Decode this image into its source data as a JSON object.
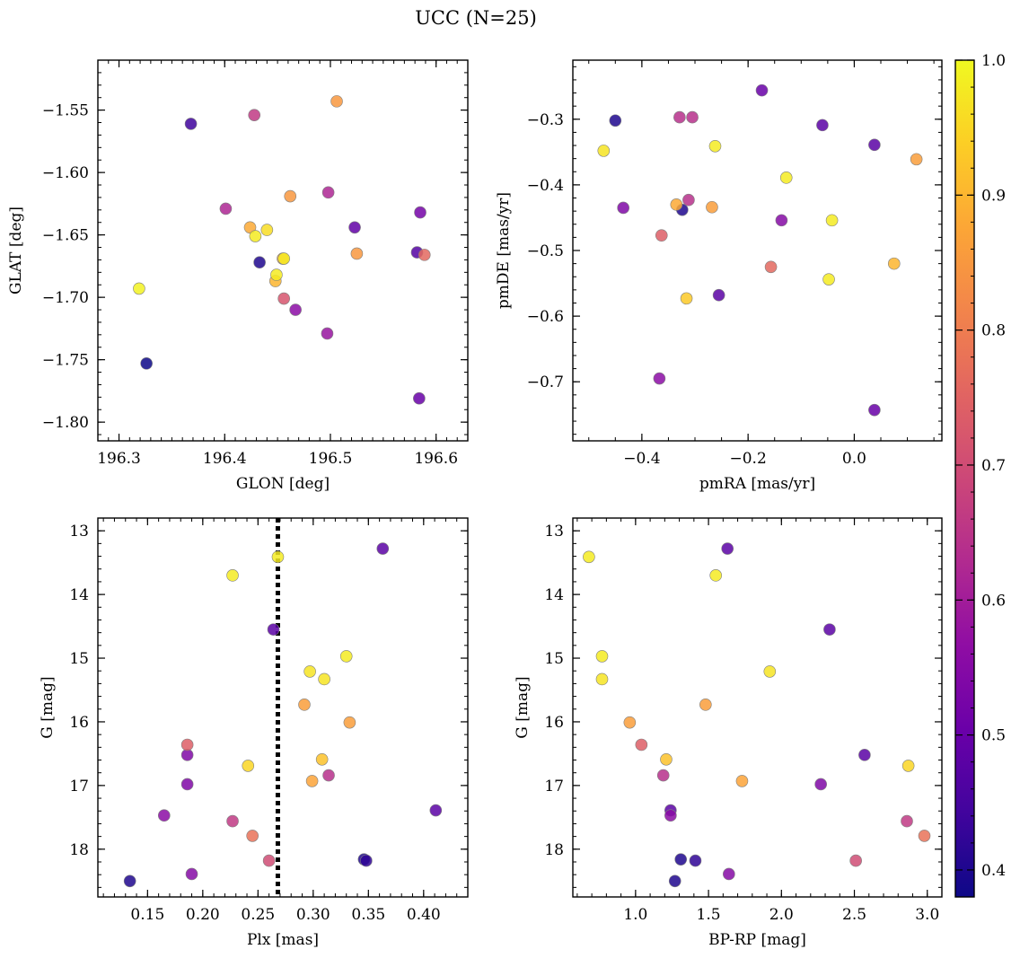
{
  "title": "UCC (N=25)",
  "chart_data": [
    {
      "type": "scatter",
      "id": "glon-glat",
      "xlabel": "GLON [deg]",
      "ylabel": "GLAT [deg]",
      "xlim": [
        196.28,
        196.63
      ],
      "ylim": [
        -1.815,
        -1.51
      ],
      "y_inverted": false,
      "xticks": [
        196.3,
        196.4,
        196.5,
        196.6
      ],
      "xtick_labels": [
        "196.3",
        "196.4",
        "196.5",
        "196.6"
      ],
      "yticks": [
        -1.55,
        -1.6,
        -1.65,
        -1.7,
        -1.75,
        -1.8
      ],
      "ytick_labels": [
        "−1.55",
        "−1.60",
        "−1.65",
        "−1.70",
        "−1.75",
        "−1.80"
      ],
      "points": [
        {
          "x": 196.368,
          "y": -1.561,
          "c": 0.44
        },
        {
          "x": 196.428,
          "y": -1.554,
          "c": 0.66
        },
        {
          "x": 196.506,
          "y": -1.543,
          "c": 0.85
        },
        {
          "x": 196.462,
          "y": -1.619,
          "c": 0.85
        },
        {
          "x": 196.498,
          "y": -1.616,
          "c": 0.62
        },
        {
          "x": 196.401,
          "y": -1.629,
          "c": 0.62
        },
        {
          "x": 196.424,
          "y": -1.644,
          "c": 0.88
        },
        {
          "x": 196.44,
          "y": -1.646,
          "c": 0.96
        },
        {
          "x": 196.429,
          "y": -1.651,
          "c": 0.98
        },
        {
          "x": 196.523,
          "y": -1.644,
          "c": 0.49
        },
        {
          "x": 196.585,
          "y": -1.632,
          "c": 0.52
        },
        {
          "x": 196.433,
          "y": -1.672,
          "c": 0.4
        },
        {
          "x": 196.455,
          "y": -1.669,
          "c": 0.88
        },
        {
          "x": 196.456,
          "y": -1.669,
          "c": 0.98
        },
        {
          "x": 196.525,
          "y": -1.665,
          "c": 0.85
        },
        {
          "x": 196.582,
          "y": -1.664,
          "c": 0.47
        },
        {
          "x": 196.589,
          "y": -1.666,
          "c": 0.76
        },
        {
          "x": 196.448,
          "y": -1.687,
          "c": 0.9
        },
        {
          "x": 196.449,
          "y": -1.682,
          "c": 0.98
        },
        {
          "x": 196.319,
          "y": -1.693,
          "c": 0.99
        },
        {
          "x": 196.456,
          "y": -1.701,
          "c": 0.72
        },
        {
          "x": 196.467,
          "y": -1.71,
          "c": 0.56
        },
        {
          "x": 196.497,
          "y": -1.729,
          "c": 0.58
        },
        {
          "x": 196.326,
          "y": -1.753,
          "c": 0.38
        },
        {
          "x": 196.584,
          "y": -1.781,
          "c": 0.5
        }
      ]
    },
    {
      "type": "scatter",
      "id": "pmra-pmde",
      "xlabel": "pmRA [mas/yr]",
      "ylabel": "pmDE [mas/yr]",
      "xlim": [
        -0.53,
        0.165
      ],
      "ylim": [
        -0.79,
        -0.21
      ],
      "y_inverted": false,
      "xticks": [
        -0.4,
        -0.2,
        0.0
      ],
      "xtick_labels": [
        "−0.4",
        "−0.2",
        "0.0"
      ],
      "yticks": [
        -0.3,
        -0.4,
        -0.5,
        -0.6,
        -0.7
      ],
      "ytick_labels": [
        "−0.3",
        "−0.4",
        "−0.5",
        "−0.6",
        "−0.7"
      ],
      "points": [
        {
          "x": -0.174,
          "y": -0.256,
          "c": 0.5
        },
        {
          "x": -0.45,
          "y": -0.302,
          "c": 0.4
        },
        {
          "x": -0.329,
          "y": -0.297,
          "c": 0.64
        },
        {
          "x": -0.305,
          "y": -0.297,
          "c": 0.64
        },
        {
          "x": -0.06,
          "y": -0.309,
          "c": 0.48
        },
        {
          "x": 0.038,
          "y": -0.339,
          "c": 0.48
        },
        {
          "x": -0.472,
          "y": -0.348,
          "c": 0.97
        },
        {
          "x": -0.262,
          "y": -0.341,
          "c": 0.98
        },
        {
          "x": 0.117,
          "y": -0.361,
          "c": 0.86
        },
        {
          "x": -0.128,
          "y": -0.389,
          "c": 0.98
        },
        {
          "x": -0.335,
          "y": -0.43,
          "c": 0.88
        },
        {
          "x": -0.312,
          "y": -0.423,
          "c": 0.64
        },
        {
          "x": -0.324,
          "y": -0.438,
          "c": 0.4
        },
        {
          "x": -0.268,
          "y": -0.434,
          "c": 0.86
        },
        {
          "x": -0.435,
          "y": -0.435,
          "c": 0.54
        },
        {
          "x": -0.137,
          "y": -0.454,
          "c": 0.55
        },
        {
          "x": -0.042,
          "y": -0.454,
          "c": 0.98
        },
        {
          "x": -0.363,
          "y": -0.477,
          "c": 0.74
        },
        {
          "x": -0.157,
          "y": -0.525,
          "c": 0.76
        },
        {
          "x": 0.075,
          "y": -0.52,
          "c": 0.9
        },
        {
          "x": -0.048,
          "y": -0.544,
          "c": 0.98
        },
        {
          "x": -0.316,
          "y": -0.573,
          "c": 0.93
        },
        {
          "x": -0.255,
          "y": -0.568,
          "c": 0.48
        },
        {
          "x": -0.367,
          "y": -0.695,
          "c": 0.56
        },
        {
          "x": 0.038,
          "y": -0.743,
          "c": 0.5
        }
      ]
    },
    {
      "type": "scatter",
      "id": "plx-g",
      "xlabel": "Plx [mas]",
      "ylabel": "G [mag]",
      "xlim": [
        0.105,
        0.44
      ],
      "ylim": [
        18.75,
        12.8
      ],
      "y_inverted": true,
      "xticks": [
        0.15,
        0.2,
        0.25,
        0.3,
        0.35,
        0.4
      ],
      "xtick_labels": [
        "0.15",
        "0.20",
        "0.25",
        "0.30",
        "0.35",
        "0.40"
      ],
      "yticks": [
        13,
        14,
        15,
        16,
        17,
        18
      ],
      "ytick_labels": [
        "13",
        "14",
        "15",
        "16",
        "17",
        "18"
      ],
      "vline": 0.268,
      "points": [
        {
          "x": 0.268,
          "y": 13.41,
          "c": 0.98
        },
        {
          "x": 0.363,
          "y": 13.28,
          "c": 0.48
        },
        {
          "x": 0.227,
          "y": 13.7,
          "c": 0.98
        },
        {
          "x": 0.264,
          "y": 14.55,
          "c": 0.48
        },
        {
          "x": 0.33,
          "y": 14.97,
          "c": 0.98
        },
        {
          "x": 0.297,
          "y": 15.21,
          "c": 0.97
        },
        {
          "x": 0.31,
          "y": 15.33,
          "c": 0.97
        },
        {
          "x": 0.292,
          "y": 15.73,
          "c": 0.86
        },
        {
          "x": 0.333,
          "y": 16.01,
          "c": 0.86
        },
        {
          "x": 0.186,
          "y": 16.36,
          "c": 0.74
        },
        {
          "x": 0.186,
          "y": 16.52,
          "c": 0.54
        },
        {
          "x": 0.308,
          "y": 16.59,
          "c": 0.92
        },
        {
          "x": 0.241,
          "y": 16.69,
          "c": 0.95
        },
        {
          "x": 0.314,
          "y": 16.84,
          "c": 0.64
        },
        {
          "x": 0.299,
          "y": 16.93,
          "c": 0.87
        },
        {
          "x": 0.186,
          "y": 16.98,
          "c": 0.54
        },
        {
          "x": 0.165,
          "y": 17.47,
          "c": 0.56
        },
        {
          "x": 0.411,
          "y": 17.39,
          "c": 0.48
        },
        {
          "x": 0.227,
          "y": 17.56,
          "c": 0.66
        },
        {
          "x": 0.245,
          "y": 17.79,
          "c": 0.78
        },
        {
          "x": 0.26,
          "y": 18.18,
          "c": 0.7
        },
        {
          "x": 0.346,
          "y": 18.16,
          "c": 0.4
        },
        {
          "x": 0.348,
          "y": 18.18,
          "c": 0.42
        },
        {
          "x": 0.19,
          "y": 18.39,
          "c": 0.55
        },
        {
          "x": 0.134,
          "y": 18.5,
          "c": 0.4
        }
      ]
    },
    {
      "type": "scatter",
      "id": "bprp-g",
      "xlabel": "BP-RP [mag]",
      "ylabel": "G [mag]",
      "xlim": [
        0.57,
        3.1
      ],
      "ylim": [
        18.75,
        12.8
      ],
      "y_inverted": true,
      "xticks": [
        1.0,
        1.5,
        2.0,
        2.5,
        3.0
      ],
      "xtick_labels": [
        "1.0",
        "1.5",
        "2.0",
        "2.5",
        "3.0"
      ],
      "yticks": [
        13,
        14,
        15,
        16,
        17,
        18
      ],
      "ytick_labels": [
        "13",
        "14",
        "15",
        "16",
        "17",
        "18"
      ],
      "points": [
        {
          "x": 0.68,
          "y": 13.41,
          "c": 0.98
        },
        {
          "x": 1.63,
          "y": 13.28,
          "c": 0.48
        },
        {
          "x": 1.55,
          "y": 13.7,
          "c": 0.98
        },
        {
          "x": 2.33,
          "y": 14.55,
          "c": 0.48
        },
        {
          "x": 0.77,
          "y": 14.97,
          "c": 0.98
        },
        {
          "x": 0.77,
          "y": 15.33,
          "c": 0.97
        },
        {
          "x": 1.92,
          "y": 15.21,
          "c": 0.97
        },
        {
          "x": 1.48,
          "y": 15.73,
          "c": 0.86
        },
        {
          "x": 0.96,
          "y": 16.01,
          "c": 0.86
        },
        {
          "x": 1.04,
          "y": 16.36,
          "c": 0.74
        },
        {
          "x": 2.57,
          "y": 16.52,
          "c": 0.48
        },
        {
          "x": 1.21,
          "y": 16.59,
          "c": 0.92
        },
        {
          "x": 2.87,
          "y": 16.69,
          "c": 0.95
        },
        {
          "x": 1.19,
          "y": 16.84,
          "c": 0.64
        },
        {
          "x": 1.73,
          "y": 16.93,
          "c": 0.87
        },
        {
          "x": 2.27,
          "y": 16.98,
          "c": 0.54
        },
        {
          "x": 1.24,
          "y": 17.39,
          "c": 0.48
        },
        {
          "x": 1.24,
          "y": 17.47,
          "c": 0.56
        },
        {
          "x": 2.86,
          "y": 17.56,
          "c": 0.66
        },
        {
          "x": 2.98,
          "y": 17.79,
          "c": 0.78
        },
        {
          "x": 1.31,
          "y": 18.16,
          "c": 0.4
        },
        {
          "x": 1.41,
          "y": 18.18,
          "c": 0.42
        },
        {
          "x": 2.51,
          "y": 18.18,
          "c": 0.7
        },
        {
          "x": 1.64,
          "y": 18.39,
          "c": 0.55
        },
        {
          "x": 1.27,
          "y": 18.5,
          "c": 0.4
        }
      ]
    }
  ],
  "colorbar": {
    "colormap": "plasma",
    "range": [
      0.38,
      1.0
    ],
    "ticks": [
      0.4,
      0.5,
      0.6,
      0.7,
      0.8,
      0.9,
      1.0
    ],
    "tick_labels": [
      "0.4",
      "0.5",
      "0.6",
      "0.7",
      "0.8",
      "0.9",
      "1.0"
    ]
  },
  "colors": {
    "vline": "#000000",
    "marker_edge": "#7f7f7f"
  }
}
